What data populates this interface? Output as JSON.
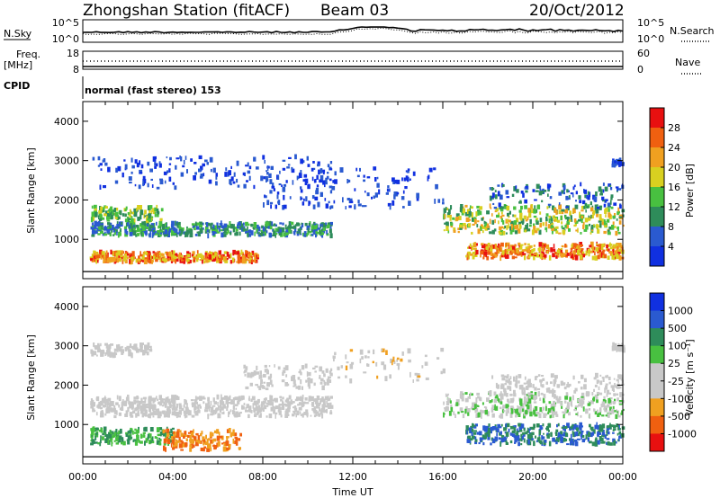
{
  "header": {
    "station": "Zhongshan Station (fitACF)",
    "beam": "Beam 03",
    "date": "20/Oct/2012",
    "cpid_label": "CPID",
    "cpid_text": "normal (fast stereo) 153"
  },
  "top_strips": {
    "nsky_label": "N.Sky",
    "nsearch_label": "N.Search",
    "freq_label_line1": "Freq.",
    "freq_label_line2": "[MHz]",
    "nave_label": "Nave",
    "nsky_ticks": [
      "10^5",
      "10^0"
    ],
    "nsearch_ticks": [
      "10^5",
      "10^0"
    ],
    "freq_ticks": [
      "18",
      "8"
    ],
    "nave_ticks": [
      "60",
      "0"
    ]
  },
  "colors": {
    "power": [
      "#1030e0",
      "#2a5ad0",
      "#2e8c5a",
      "#48c040",
      "#d8d020",
      "#f0a020",
      "#f06010",
      "#e81010"
    ],
    "velocity": [
      "#e81010",
      "#f06010",
      "#f0a020",
      "#c8c8c8",
      "#c8c8c8",
      "#48c040",
      "#2e8c5a",
      "#2a5ad0",
      "#1030e0"
    ]
  },
  "chart_data": [
    {
      "type": "heatmap",
      "name": "power",
      "ylabel": "Slant Range [km]",
      "xlabel": "",
      "ylim": [
        0,
        4500
      ],
      "y_ticks": [
        "1000",
        "2000",
        "3000",
        "4000"
      ],
      "x_ticks": [
        "00:00",
        "04:00",
        "08:00",
        "12:00",
        "16:00",
        "20:00",
        "00:00"
      ],
      "colorbar": {
        "label": "Power [dB]",
        "ticks": [
          "4",
          "8",
          "12",
          "16",
          "20",
          "24",
          "28"
        ]
      }
    },
    {
      "type": "heatmap",
      "name": "velocity",
      "ylabel": "Slant Range [km]",
      "xlabel": "Time UT",
      "ylim": [
        0,
        4500
      ],
      "y_ticks": [
        "1000",
        "2000",
        "3000",
        "4000"
      ],
      "x_ticks": [
        "00:00",
        "04:00",
        "08:00",
        "12:00",
        "16:00",
        "20:00",
        "00:00"
      ],
      "colorbar": {
        "label": "Velocity [m s⁻¹]",
        "ticks": [
          "1000",
          "500",
          "100",
          "25",
          "-25",
          "-100",
          "-500",
          "-1000"
        ]
      }
    }
  ]
}
